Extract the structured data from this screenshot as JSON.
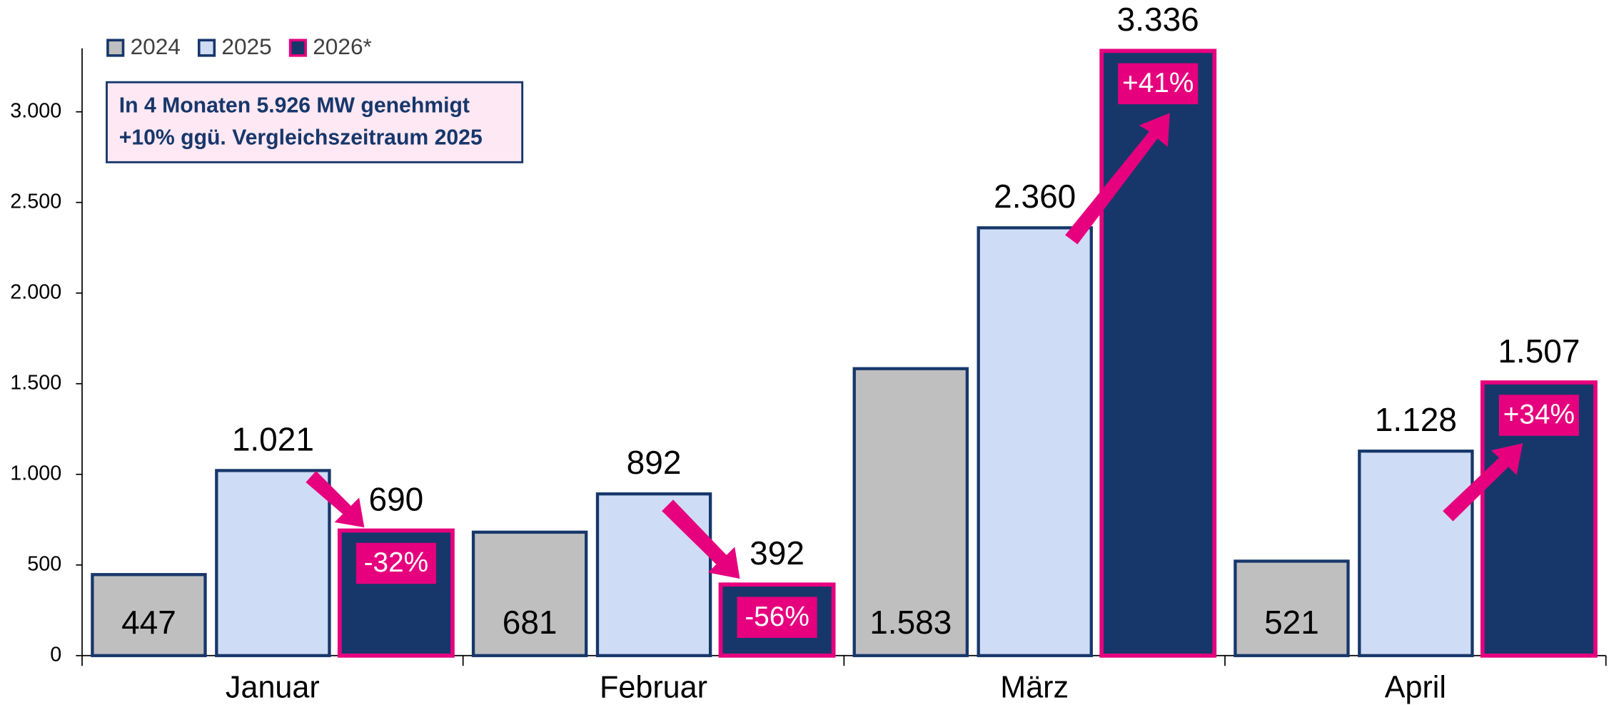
{
  "chart_data": {
    "type": "bar",
    "categories": [
      "Januar",
      "Februar",
      "März",
      "April"
    ],
    "series": [
      {
        "name": "2024",
        "color": "#bfbfbf",
        "values": [
          447,
          681,
          1583,
          521
        ],
        "value_labels": [
          "447",
          "681",
          "1.583",
          "521"
        ]
      },
      {
        "name": "2025",
        "color": "#cfdcf5",
        "values": [
          1021,
          892,
          2360,
          1128
        ],
        "value_labels": [
          "1.021",
          "892",
          "2.360",
          "1.128"
        ]
      },
      {
        "name": "2026*",
        "color": "#17376b",
        "values": [
          690,
          392,
          3336,
          1507
        ],
        "value_labels": [
          "690",
          "392",
          "3.336",
          "1.507"
        ]
      }
    ],
    "ylim": [
      0,
      3350
    ],
    "yticks": [
      0,
      500,
      {
        "value": 1000,
        "label": "1.000"
      },
      {
        "value": 1500,
        "label": "1.500"
      },
      {
        "value": 2000,
        "label": "2.000"
      },
      {
        "value": 2500,
        "label": "2.500"
      },
      {
        "value": 3000,
        "label": "3.000"
      }
    ],
    "annotations": [
      "-32%",
      "-56%",
      "+41%",
      "+34%"
    ],
    "textbox": [
      "In 4 Monaten 5.926 MW genehmigt",
      "+10% ggü. Vergleichszeitraum 2025"
    ]
  }
}
